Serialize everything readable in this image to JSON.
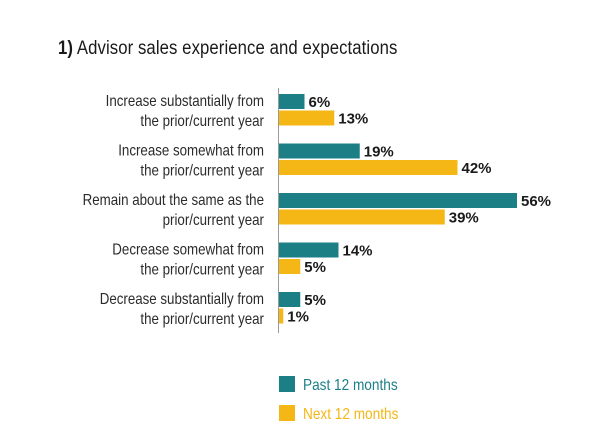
{
  "chart_data": {
    "type": "bar",
    "orientation": "horizontal",
    "title_number": "1)",
    "title": "Advisor sales experience and expectations",
    "categories": [
      [
        "Increase substantially from",
        "the prior/current year"
      ],
      [
        "Increase somewhat from",
        "the prior/current year"
      ],
      [
        "Remain about the same as the",
        "prior/current year"
      ],
      [
        "Decrease somewhat from",
        "the prior/current year"
      ],
      [
        "Decrease substantially from",
        "the prior/current year"
      ]
    ],
    "series": [
      {
        "name": "Past 12 months",
        "color": "#1c7f86",
        "values": [
          6,
          19,
          56,
          14,
          5
        ],
        "labels": [
          "6%",
          "19%",
          "56%",
          "14%",
          "5%"
        ]
      },
      {
        "name": "Next 12 months",
        "color": "#f5b716",
        "values": [
          13,
          42,
          39,
          5,
          1
        ],
        "labels": [
          "13%",
          "42%",
          "39%",
          "5%",
          "1%"
        ]
      }
    ],
    "xlim": [
      0,
      56
    ],
    "grid": false,
    "legend_position": "bottom"
  }
}
